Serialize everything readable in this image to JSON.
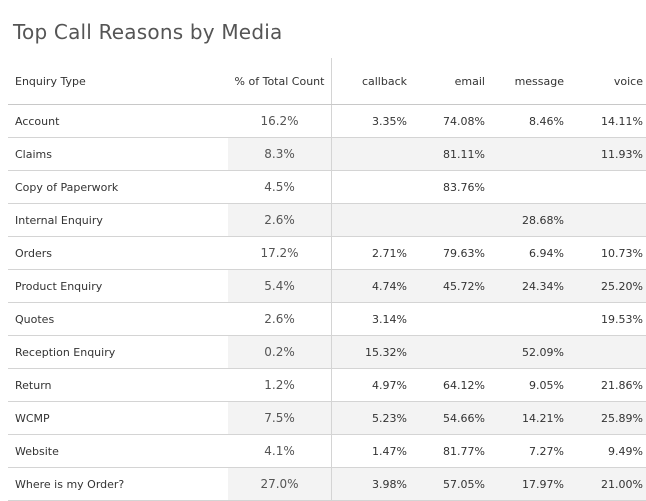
{
  "chart_data": {
    "type": "table",
    "title": "Top Call Reasons by Media",
    "columns": [
      "Enquiry Type",
      "% of Total Count",
      "callback",
      "email",
      "message",
      "voice"
    ],
    "rows": [
      [
        "Account",
        "16.2%",
        "3.35%",
        "74.08%",
        "8.46%",
        "14.11%"
      ],
      [
        "Claims",
        "8.3%",
        "",
        "81.11%",
        "",
        "11.93%"
      ],
      [
        "Copy of Paperwork",
        "4.5%",
        "",
        "83.76%",
        "",
        ""
      ],
      [
        "Internal Enquiry",
        "2.6%",
        "",
        "",
        "28.68%",
        ""
      ],
      [
        "Orders",
        "17.2%",
        "2.71%",
        "79.63%",
        "6.94%",
        "10.73%"
      ],
      [
        "Product Enquiry",
        "5.4%",
        "4.74%",
        "45.72%",
        "24.34%",
        "25.20%"
      ],
      [
        "Quotes",
        "2.6%",
        "3.14%",
        "",
        "",
        "19.53%"
      ],
      [
        "Reception Enquiry",
        "0.2%",
        "15.32%",
        "",
        "52.09%",
        ""
      ],
      [
        "Return",
        "1.2%",
        "4.97%",
        "64.12%",
        "9.05%",
        "21.86%"
      ],
      [
        "WCMP",
        "7.5%",
        "5.23%",
        "54.66%",
        "14.21%",
        "25.89%"
      ],
      [
        "Website",
        "4.1%",
        "1.47%",
        "81.77%",
        "7.27%",
        "9.49%"
      ],
      [
        "Where is my Order?",
        "27.0%",
        "3.98%",
        "57.05%",
        "17.97%",
        "21.00%"
      ]
    ],
    "colors": {
      "row_band": "#f3f3f3",
      "gridline": "#d4d4d4",
      "title": "#555555"
    }
  }
}
